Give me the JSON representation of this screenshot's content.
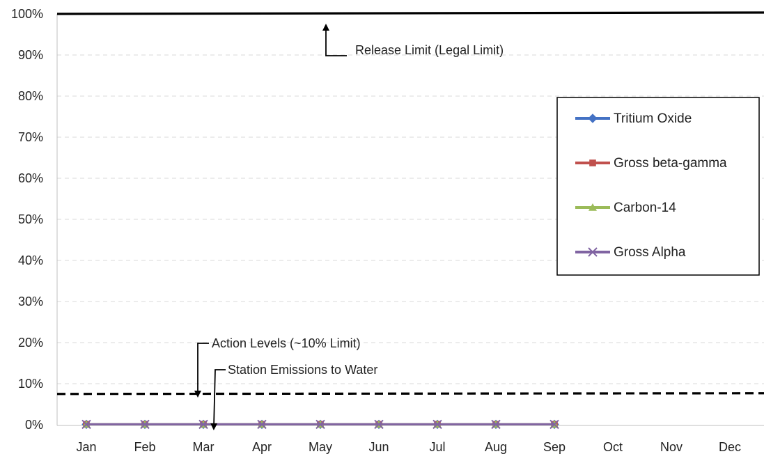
{
  "chart_data": {
    "type": "line",
    "categories": [
      "Jan",
      "Feb",
      "Mar",
      "Apr",
      "May",
      "Jun",
      "Jul",
      "Aug",
      "Sep",
      "Oct",
      "Nov",
      "Dec"
    ],
    "y_axis": {
      "min": 0,
      "max": 100,
      "step": 10,
      "ticks": [
        "0%",
        "10%",
        "20%",
        "30%",
        "40%",
        "50%",
        "60%",
        "70%",
        "80%",
        "90%",
        "100%"
      ]
    },
    "grid": "horizontal-dashed",
    "legend": "right",
    "series": [
      {
        "name": "Tritium Oxide",
        "color": "#4472C4",
        "marker": "diamond",
        "values": [
          0.1,
          0.1,
          0.1,
          0.1,
          0.1,
          0.1,
          0.1,
          0.1,
          0.1,
          null,
          null,
          null
        ]
      },
      {
        "name": "Gross beta-gamma",
        "color": "#C0504D",
        "marker": "square",
        "values": [
          0.1,
          0.1,
          0.1,
          0.1,
          0.1,
          0.1,
          0.1,
          0.1,
          0.1,
          null,
          null,
          null
        ]
      },
      {
        "name": "Carbon-14",
        "color": "#9BBB59",
        "marker": "triangle",
        "values": [
          0.1,
          0.1,
          0.1,
          0.1,
          0.1,
          0.1,
          0.1,
          0.1,
          0.1,
          null,
          null,
          null
        ]
      },
      {
        "name": "Gross Alpha",
        "color": "#8064A2",
        "marker": "x",
        "values": [
          0.1,
          0.1,
          0.1,
          0.1,
          0.1,
          0.1,
          0.1,
          0.1,
          0.1,
          null,
          null,
          null
        ]
      }
    ],
    "reference_lines": [
      {
        "value": 100,
        "style": "solid",
        "color": "#000000"
      },
      {
        "value": 7.5,
        "style": "dashed",
        "color": "#000000"
      }
    ],
    "annotations": [
      {
        "text": "Release Limit (Legal Limit)",
        "points_to": 100
      },
      {
        "text": "Action Levels (~10% Limit)",
        "points_to": 7.5
      },
      {
        "text": "Station Emissions to Water",
        "points_to": 0
      }
    ]
  }
}
